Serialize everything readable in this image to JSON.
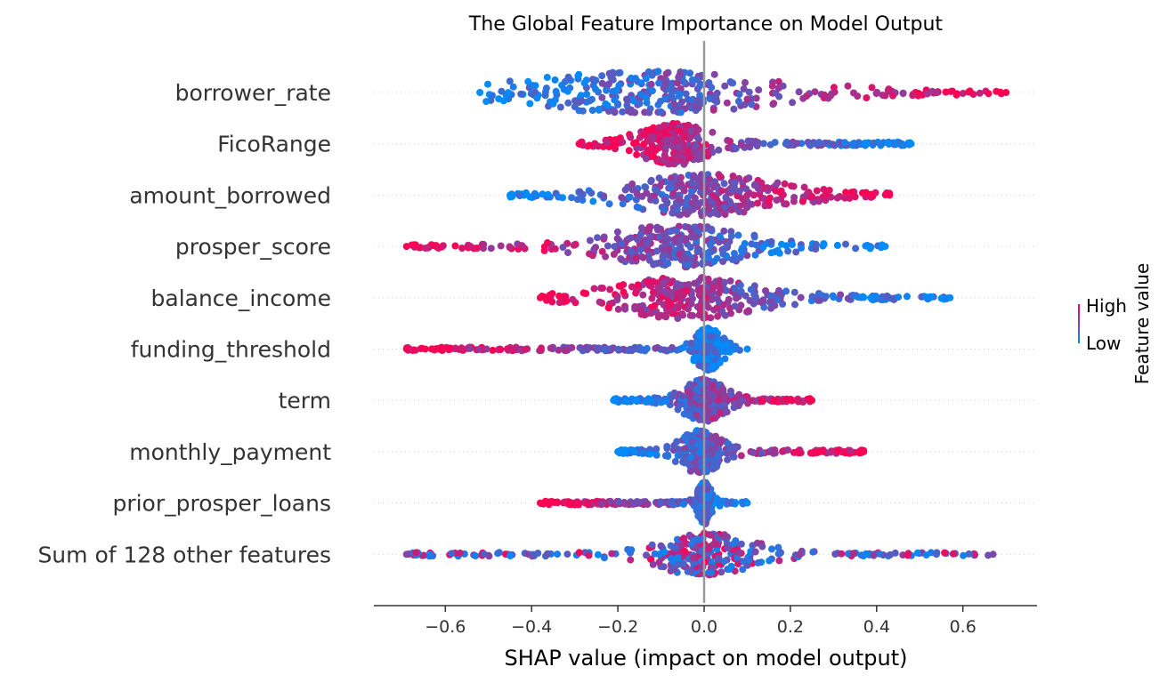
{
  "chart_data": {
    "type": "scatter",
    "title": "The Global Feature Importance on Model Output",
    "xlabel": "SHAP value (impact on model output)",
    "xlim": [
      -0.76,
      0.76
    ],
    "x_ticks": [
      -0.6,
      -0.4,
      -0.2,
      0.0,
      0.2,
      0.4,
      0.6
    ],
    "x_tick_labels": [
      "−0.6",
      "−0.4",
      "−0.2",
      "0.0",
      "0.2",
      "0.4",
      "0.6"
    ],
    "grid": false,
    "colorbar": {
      "label": "Feature value",
      "high_label": "High",
      "low_label": "Low",
      "high_color": "#ff0052",
      "low_color": "#008bfb"
    },
    "features": [
      {
        "name": "borrower_rate",
        "min": -0.52,
        "max": 0.7,
        "peak": -0.13,
        "spread": 0.18,
        "high_side": "right"
      },
      {
        "name": "FicoRange",
        "min": -0.29,
        "max": 0.48,
        "peak": -0.07,
        "spread": 0.05,
        "high_side": "left"
      },
      {
        "name": "amount_borrowed",
        "min": -0.45,
        "max": 0.43,
        "peak": 0.0,
        "spread": 0.1,
        "high_side": "right"
      },
      {
        "name": "prosper_score",
        "min": -0.69,
        "max": 0.42,
        "peak": -0.06,
        "spread": 0.1,
        "high_side": "left"
      },
      {
        "name": "balance_income",
        "min": -0.38,
        "max": 0.57,
        "peak": -0.04,
        "spread": 0.1,
        "high_side": "left"
      },
      {
        "name": "funding_threshold",
        "min": -0.69,
        "max": 0.1,
        "peak": 0.01,
        "spread": 0.02,
        "high_side": "left"
      },
      {
        "name": "term",
        "min": -0.21,
        "max": 0.25,
        "peak": 0.0,
        "spread": 0.03,
        "high_side": "right"
      },
      {
        "name": "monthly_payment",
        "min": -0.2,
        "max": 0.37,
        "peak": -0.01,
        "spread": 0.03,
        "high_side": "right"
      },
      {
        "name": "prior_prosper_loans",
        "min": -0.38,
        "max": 0.1,
        "peak": 0.0,
        "spread": 0.01,
        "high_side": "left"
      },
      {
        "name": "Sum of 128 other features",
        "min": -0.69,
        "max": 0.67,
        "peak": 0.0,
        "spread": 0.07,
        "high_side": "mixed"
      }
    ]
  }
}
